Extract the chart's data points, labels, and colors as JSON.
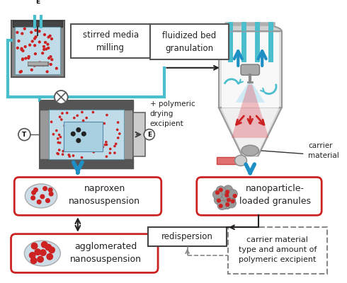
{
  "bg_color": "#ffffff",
  "teal": "#4bbece",
  "blue_arrow": "#1e8fc5",
  "red_dot": "#cc2222",
  "box_border_red": "#cc2222",
  "box_border_dark": "#555555",
  "gray_dark": "#555555",
  "gray_mid": "#888888",
  "gray_light": "#cccccc",
  "gray_device": "#999999",
  "blue_light": "#b8dce8",
  "labels": {
    "stirred_media": "stirred media\nmilling",
    "fluidized_bed": "fluidized bed\ngranulation",
    "polymeric": "+ polymeric\ndrying\nexcipient",
    "carrier": "carrier\nmaterial",
    "naproxen": "naproxen\nnanosuspension",
    "granules": "nanoparticle-\nloaded granules",
    "agglomerated": "agglomerated\nnanosuspension",
    "redispersion": "redispersion",
    "carrier_type": "carrier material\ntype and amount of\npolymeric excipient"
  }
}
